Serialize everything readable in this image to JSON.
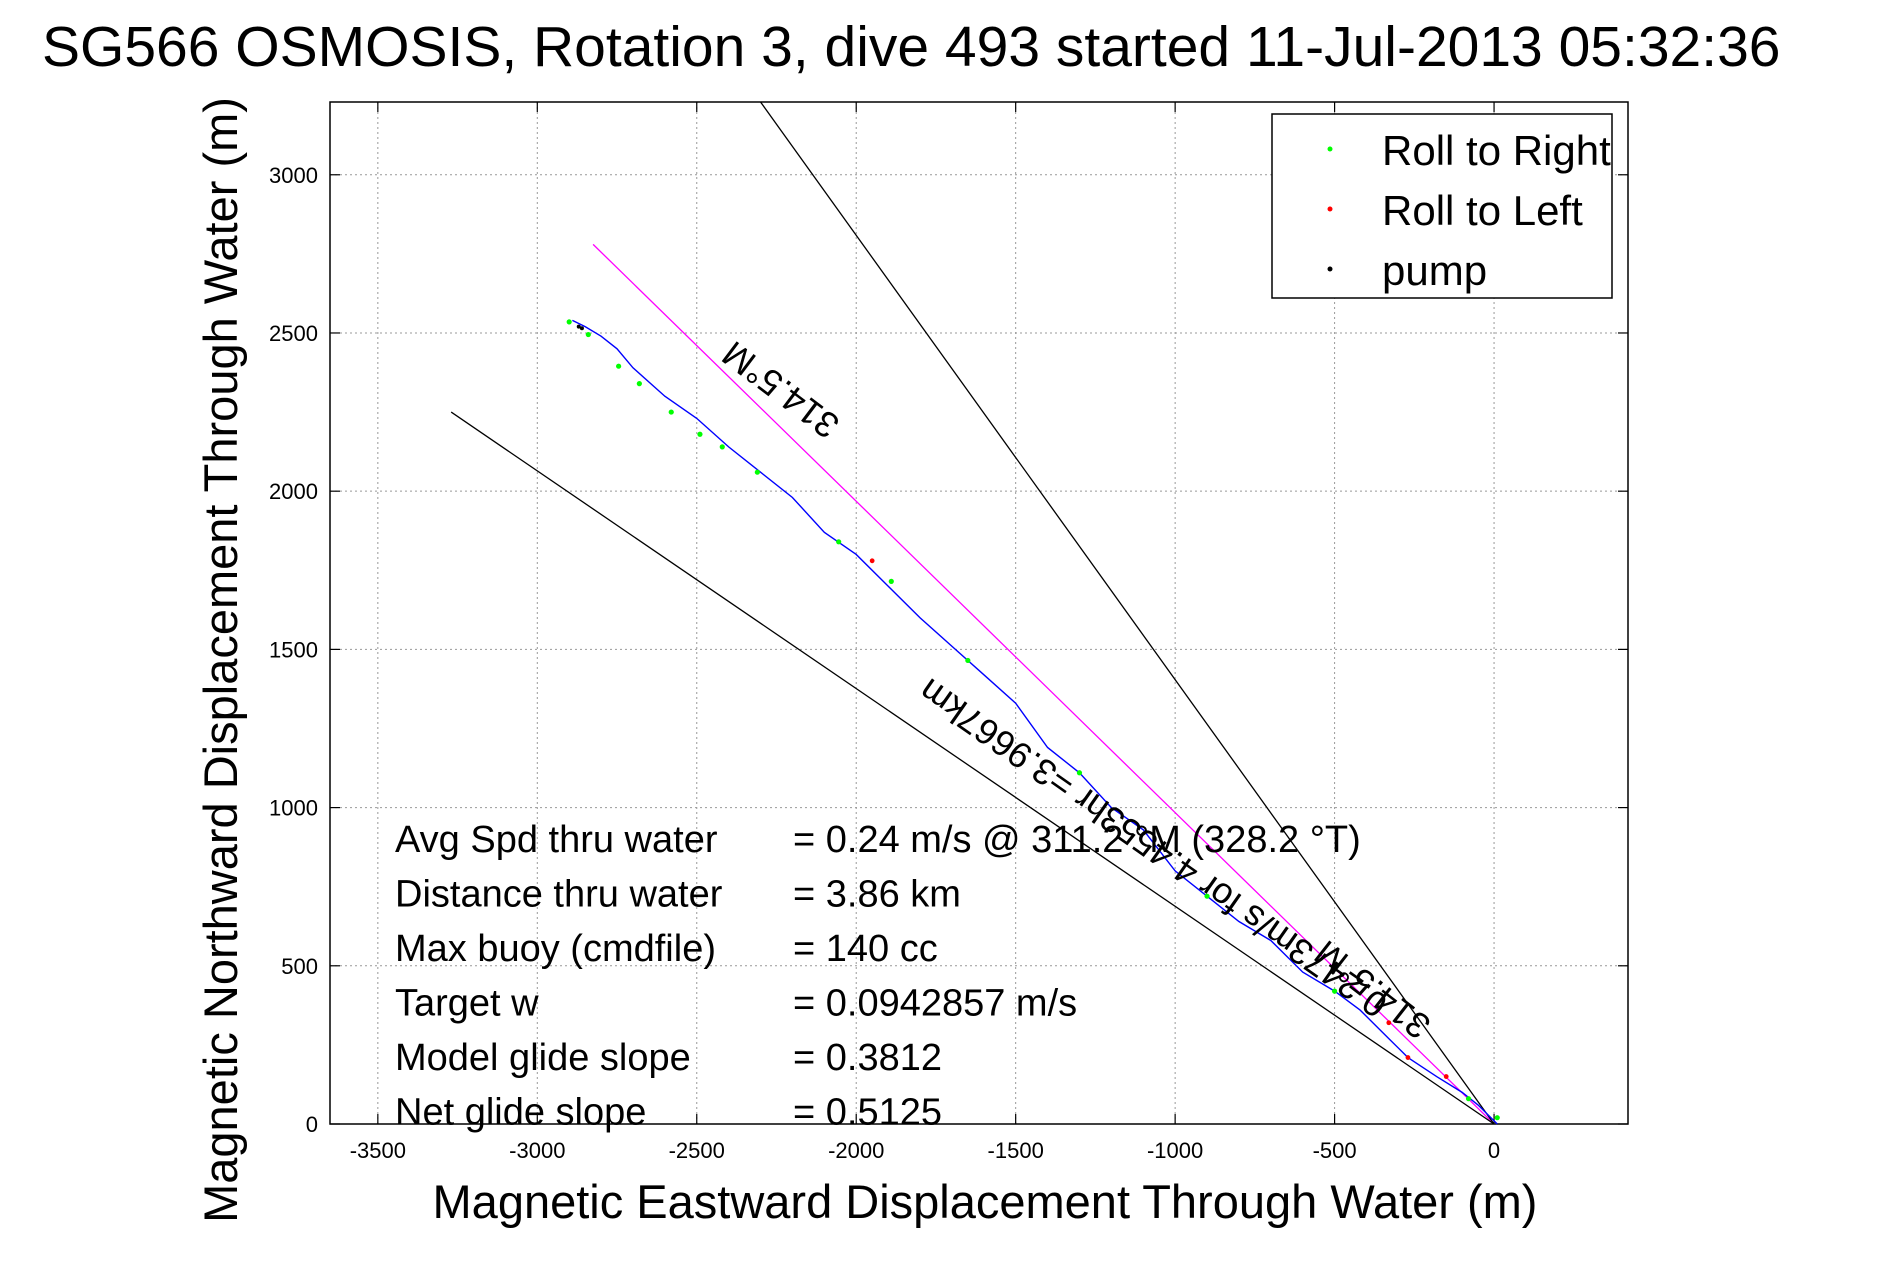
{
  "chart_data": {
    "type": "line",
    "title": "SG566 OSMOSIS, Rotation 3, dive 493 started 11-Jul-2013 05:32:36",
    "xlabel": "Magnetic Eastward Displacement Through Water (m)",
    "ylabel": "Magnetic Northward Displacement Through Water (m)",
    "xlim": [
      -3650,
      420
    ],
    "ylim": [
      0,
      3230
    ],
    "xticks": [
      -3500,
      -3000,
      -2500,
      -2000,
      -1500,
      -1000,
      -500,
      0
    ],
    "yticks": [
      0,
      500,
      1000,
      1500,
      2000,
      2500,
      3000
    ],
    "grid": true,
    "legend": {
      "placement": "top-right",
      "entries": [
        {
          "label": "Roll to Right",
          "color": "#00ff00"
        },
        {
          "label": "Roll to Left",
          "color": "#ff0000"
        },
        {
          "label": "pump",
          "color": "#000000"
        }
      ]
    },
    "series": [
      {
        "name": "track",
        "color": "#0000ff",
        "x": [
          10,
          -50,
          -100,
          -180,
          -270,
          -330,
          -420,
          -500,
          -600,
          -700,
          -800,
          -900,
          -1000,
          -1100,
          -1200,
          -1300,
          -1400,
          -1500,
          -1600,
          -1700,
          -1800,
          -1900,
          -2000,
          -2100,
          -2200,
          -2300,
          -2400,
          -2500,
          -2600,
          -2700,
          -2750,
          -2800,
          -2850,
          -2890
        ],
        "y": [
          0,
          60,
          100,
          150,
          210,
          270,
          360,
          420,
          480,
          580,
          640,
          720,
          800,
          930,
          1000,
          1110,
          1190,
          1330,
          1420,
          1510,
          1600,
          1700,
          1800,
          1870,
          1980,
          2060,
          2140,
          2230,
          2300,
          2390,
          2450,
          2490,
          2520,
          2540
        ]
      }
    ],
    "roll_right_points": [
      {
        "x": 10,
        "y": 20
      },
      {
        "x": -80,
        "y": 80
      },
      {
        "x": -500,
        "y": 420
      },
      {
        "x": -900,
        "y": 720
      },
      {
        "x": -1300,
        "y": 1110
      },
      {
        "x": -1650,
        "y": 1465
      },
      {
        "x": -1890,
        "y": 1715
      },
      {
        "x": -2055,
        "y": 1840
      },
      {
        "x": -2310,
        "y": 2060
      },
      {
        "x": -2420,
        "y": 2140
      },
      {
        "x": -2490,
        "y": 2180
      },
      {
        "x": -2580,
        "y": 2250
      },
      {
        "x": -2680,
        "y": 2340
      },
      {
        "x": -2745,
        "y": 2395
      },
      {
        "x": -2840,
        "y": 2495
      },
      {
        "x": -2900,
        "y": 2535
      }
    ],
    "roll_left_points": [
      {
        "x": -150,
        "y": 150
      },
      {
        "x": -270,
        "y": 210
      },
      {
        "x": -330,
        "y": 320
      },
      {
        "x": -1950,
        "y": 1780
      }
    ],
    "pump_points": [
      {
        "x": -2870,
        "y": 2520
      },
      {
        "x": -2860,
        "y": 2515
      }
    ],
    "reference_lines": [
      {
        "name": "current direction line",
        "color": "#ff00ff",
        "from": {
          "x": 0,
          "y": 0
        },
        "to": {
          "x": -2825,
          "y": 2780
        }
      },
      {
        "name": "upper cone line",
        "color": "#000000",
        "from": {
          "x": 0,
          "y": 0
        },
        "to": {
          "x": -2300,
          "y": 3230
        }
      },
      {
        "name": "lower cone line",
        "color": "#000000",
        "from": {
          "x": 0,
          "y": 0
        },
        "to": {
          "x": -3270,
          "y": 2250
        }
      }
    ],
    "line_annotations": [
      {
        "text": "314.5°M"
      },
      {
        "text": "0.2473m/s for 4.4553hr =3.9667km"
      },
      {
        "text": "314.5°M"
      }
    ],
    "stats": [
      {
        "label": "Avg Spd thru water",
        "value": "=  0.24 m/s @ 311.2 °M (328.2 °T)"
      },
      {
        "label": "Distance thru water",
        "value": "=  3.86 km"
      },
      {
        "label": "Max buoy (cmdfile)",
        "value": "= 140 cc"
      },
      {
        "label": "Target w",
        "value": "= 0.0942857 m/s"
      },
      {
        "label": "Model glide slope",
        "value": "= 0.3812"
      },
      {
        "label": "Net glide slope",
        "value": "= 0.5125"
      }
    ]
  }
}
